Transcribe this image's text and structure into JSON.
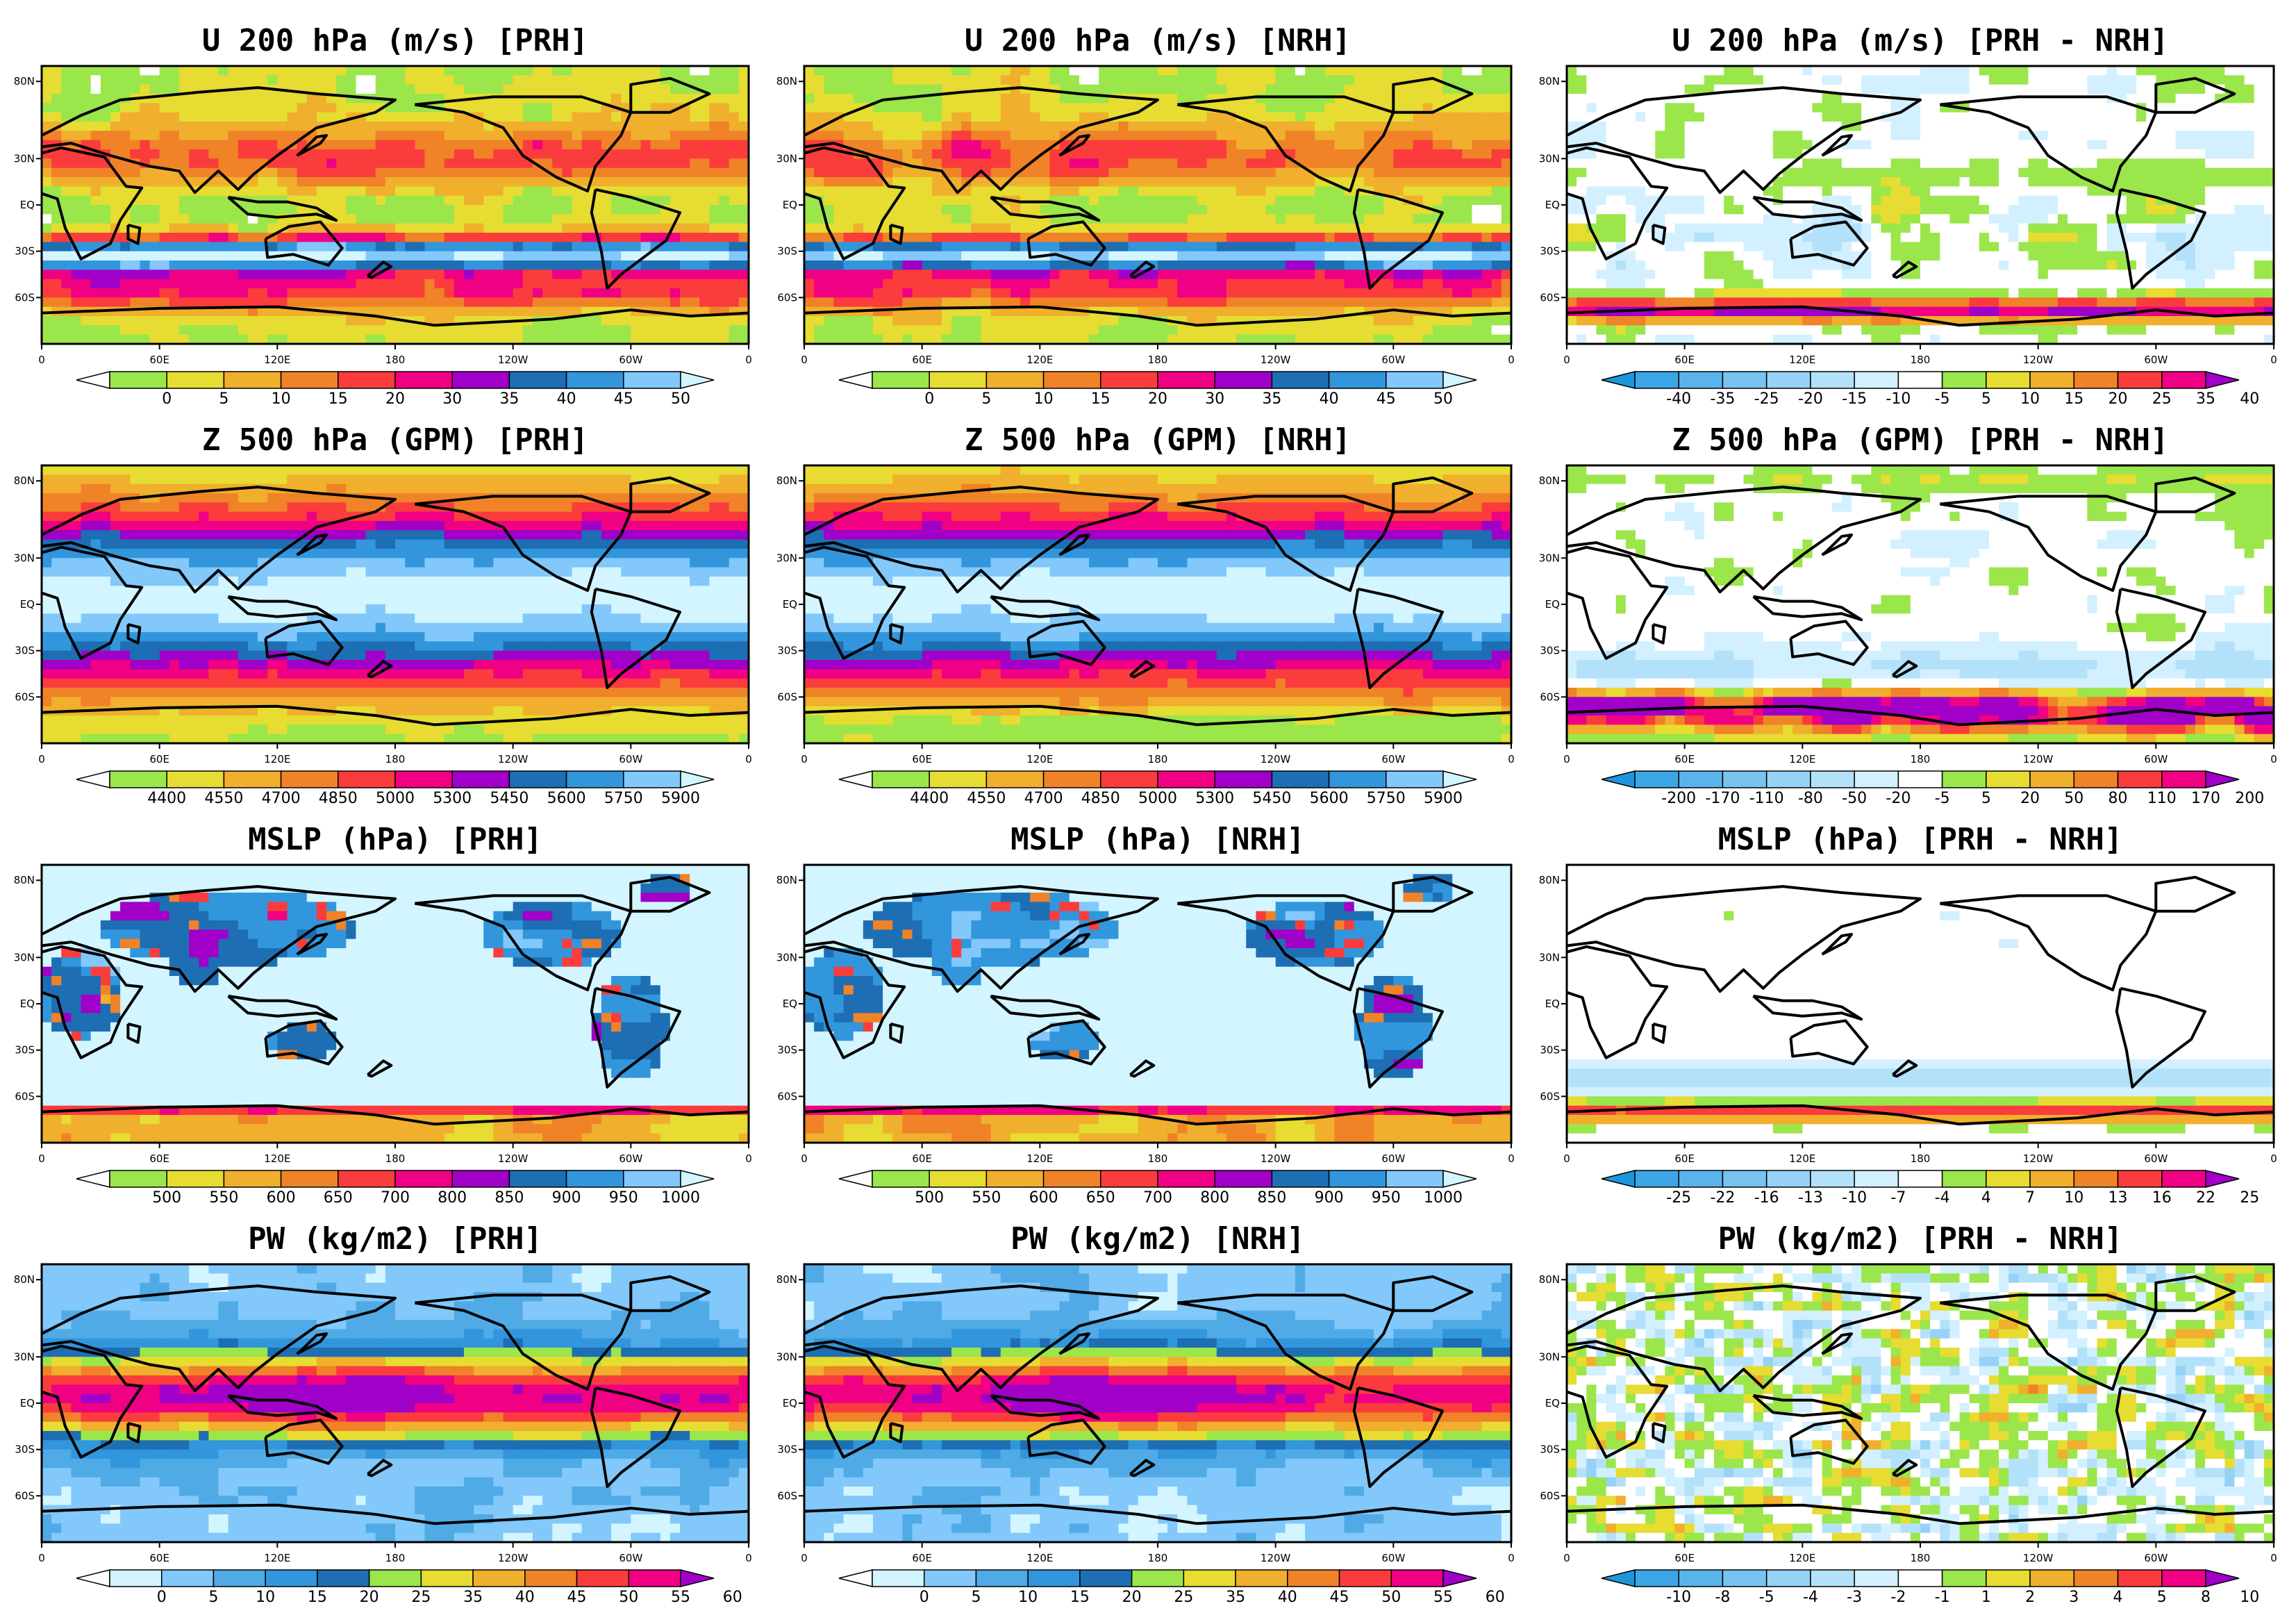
{
  "figure": {
    "rows": [
      {
        "key": "u200",
        "titles": [
          "U 200 hPa (m/s) [PRH]",
          "U 200 hPa (m/s) [NRH]",
          "U 200 hPa (m/s) [PRH - NRH]"
        ],
        "abs_levels": [
          "0",
          "5",
          "10",
          "15",
          "20",
          "30",
          "35",
          "40",
          "45",
          "50"
        ],
        "diff_levels": [
          "-40",
          "-35",
          "-25",
          "-20",
          "-15",
          "-10",
          "-5",
          "5",
          "10",
          "15",
          "20",
          "25",
          "35",
          "40"
        ]
      },
      {
        "key": "z500",
        "titles": [
          "Z 500 hPa (GPM) [PRH]",
          "Z 500 hPa (GPM) [NRH]",
          "Z 500 hPa (GPM) [PRH - NRH]"
        ],
        "abs_levels": [
          "4400",
          "4550",
          "4700",
          "4850",
          "5000",
          "5300",
          "5450",
          "5600",
          "5750",
          "5900"
        ],
        "diff_levels": [
          "-200",
          "-170",
          "-110",
          "-80",
          "-50",
          "-20",
          "-5",
          "5",
          "20",
          "50",
          "80",
          "110",
          "170",
          "200"
        ]
      },
      {
        "key": "mslp",
        "titles": [
          "MSLP (hPa) [PRH]",
          "MSLP (hPa) [NRH]",
          "MSLP (hPa) [PRH - NRH]"
        ],
        "abs_levels": [
          "500",
          "550",
          "600",
          "650",
          "700",
          "800",
          "850",
          "900",
          "950",
          "1000"
        ],
        "diff_levels": [
          "-25",
          "-22",
          "-16",
          "-13",
          "-10",
          "-7",
          "-4",
          "4",
          "7",
          "10",
          "13",
          "16",
          "22",
          "25"
        ]
      },
      {
        "key": "pw",
        "titles": [
          "PW (kg/m2) [PRH]",
          "PW (kg/m2) [NRH]",
          "PW (kg/m2) [PRH - NRH]"
        ],
        "abs_levels": [
          "0",
          "5",
          "10",
          "15",
          "20",
          "25",
          "35",
          "40",
          "45",
          "50",
          "55",
          "60"
        ],
        "diff_levels": [
          "-10",
          "-8",
          "-5",
          "-4",
          "-3",
          "-2",
          "-1",
          "1",
          "2",
          "3",
          "4",
          "5",
          "8",
          "10"
        ]
      }
    ],
    "lon_ticks": [
      "0",
      "60E",
      "120E",
      "180",
      "120W",
      "60W",
      "0"
    ],
    "lat_ticks": [
      "80N",
      "30N",
      "EQ",
      "30S",
      "60S"
    ],
    "palettes": {
      "abs": [
        "#ffffff",
        "#9be64b",
        "#e6dc32",
        "#f0af2d",
        "#f08228",
        "#fa3c3c",
        "#f00082",
        "#a000c8",
        "#1e6eb4",
        "#3296dc",
        "#82c8fa",
        "#d2f5ff"
      ],
      "abs_pw": [
        "#ffffff",
        "#d2f5ff",
        "#82c8fa",
        "#50aae6",
        "#3296dc",
        "#1e6eb4",
        "#9be64b",
        "#e6dc32",
        "#f0af2d",
        "#f08228",
        "#fa3c3c",
        "#f00082",
        "#a000c8"
      ],
      "diff": [
        "#1e96dc",
        "#3ca5e6",
        "#5ab4eb",
        "#78c3f0",
        "#96d2f5",
        "#b4e1fa",
        "#d2f0ff",
        "#ffffff",
        "#9be64b",
        "#e6dc32",
        "#f0af2d",
        "#f08228",
        "#fa3c3c",
        "#f00082",
        "#a000c8"
      ]
    }
  },
  "chart_data": [
    {
      "type": "heatmap",
      "title": "U 200 hPa (m/s) [PRH]",
      "variable": "U 200 hPa",
      "units": "m/s",
      "run": "PRH",
      "x_ticks": [
        "0",
        "60E",
        "120E",
        "180",
        "120W",
        "60W",
        "0"
      ],
      "y_ticks": [
        "80N",
        "30N",
        "EQ",
        "30S",
        "60S"
      ],
      "color_levels": [
        0,
        5,
        10,
        15,
        20,
        30,
        35,
        40,
        45,
        50
      ]
    },
    {
      "type": "heatmap",
      "title": "U 200 hPa (m/s) [NRH]",
      "variable": "U 200 hPa",
      "units": "m/s",
      "run": "NRH",
      "x_ticks": [
        "0",
        "60E",
        "120E",
        "180",
        "120W",
        "60W",
        "0"
      ],
      "y_ticks": [
        "80N",
        "30N",
        "EQ",
        "30S",
        "60S"
      ],
      "color_levels": [
        0,
        5,
        10,
        15,
        20,
        30,
        35,
        40,
        45,
        50
      ]
    },
    {
      "type": "heatmap",
      "title": "U 200 hPa (m/s) [PRH - NRH]",
      "variable": "U 200 hPa",
      "units": "m/s",
      "run": "PRH - NRH",
      "x_ticks": [
        "0",
        "60E",
        "120E",
        "180",
        "120W",
        "60W",
        "0"
      ],
      "y_ticks": [
        "80N",
        "30N",
        "EQ",
        "30S",
        "60S"
      ],
      "color_levels": [
        -40,
        -35,
        -25,
        -20,
        -15,
        -10,
        -5,
        5,
        10,
        15,
        20,
        25,
        35,
        40
      ]
    },
    {
      "type": "heatmap",
      "title": "Z 500 hPa (GPM) [PRH]",
      "variable": "Z 500 hPa",
      "units": "GPM",
      "run": "PRH",
      "x_ticks": [
        "0",
        "60E",
        "120E",
        "180",
        "120W",
        "60W",
        "0"
      ],
      "y_ticks": [
        "80N",
        "30N",
        "EQ",
        "30S",
        "60S"
      ],
      "color_levels": [
        4400,
        4550,
        4700,
        4850,
        5000,
        5300,
        5450,
        5600,
        5750,
        5900
      ]
    },
    {
      "type": "heatmap",
      "title": "Z 500 hPa (GPM) [NRH]",
      "variable": "Z 500 hPa",
      "units": "GPM",
      "run": "NRH",
      "x_ticks": [
        "0",
        "60E",
        "120E",
        "180",
        "120W",
        "60W",
        "0"
      ],
      "y_ticks": [
        "80N",
        "30N",
        "EQ",
        "30S",
        "60S"
      ],
      "color_levels": [
        4400,
        4550,
        4700,
        4850,
        5000,
        5300,
        5450,
        5600,
        5750,
        5900
      ]
    },
    {
      "type": "heatmap",
      "title": "Z 500 hPa (GPM) [PRH - NRH]",
      "variable": "Z 500 hPa",
      "units": "GPM",
      "run": "PRH - NRH",
      "x_ticks": [
        "0",
        "60E",
        "120E",
        "180",
        "120W",
        "60W",
        "0"
      ],
      "y_ticks": [
        "80N",
        "30N",
        "EQ",
        "30S",
        "60S"
      ],
      "color_levels": [
        -200,
        -170,
        -110,
        -80,
        -50,
        -20,
        -5,
        5,
        20,
        50,
        80,
        110,
        170,
        200
      ]
    },
    {
      "type": "heatmap",
      "title": "MSLP (hPa) [PRH]",
      "variable": "MSLP",
      "units": "hPa",
      "run": "PRH",
      "x_ticks": [
        "0",
        "60E",
        "120E",
        "180",
        "120W",
        "60W",
        "0"
      ],
      "y_ticks": [
        "80N",
        "30N",
        "EQ",
        "30S",
        "60S"
      ],
      "color_levels": [
        500,
        550,
        600,
        650,
        700,
        800,
        850,
        900,
        950,
        1000
      ]
    },
    {
      "type": "heatmap",
      "title": "MSLP (hPa) [NRH]",
      "variable": "MSLP",
      "units": "hPa",
      "run": "NRH",
      "x_ticks": [
        "0",
        "60E",
        "120E",
        "180",
        "120W",
        "60W",
        "0"
      ],
      "y_ticks": [
        "80N",
        "30N",
        "EQ",
        "30S",
        "60S"
      ],
      "color_levels": [
        500,
        550,
        600,
        650,
        700,
        800,
        850,
        900,
        950,
        1000
      ]
    },
    {
      "type": "heatmap",
      "title": "MSLP (hPa) [PRH - NRH]",
      "variable": "MSLP",
      "units": "hPa",
      "run": "PRH - NRH",
      "x_ticks": [
        "0",
        "60E",
        "120E",
        "180",
        "120W",
        "60W",
        "0"
      ],
      "y_ticks": [
        "80N",
        "30N",
        "EQ",
        "30S",
        "60S"
      ],
      "color_levels": [
        -25,
        -22,
        -16,
        -13,
        -10,
        -7,
        -4,
        4,
        7,
        10,
        13,
        16,
        22,
        25
      ]
    },
    {
      "type": "heatmap",
      "title": "PW (kg/m2) [PRH]",
      "variable": "PW",
      "units": "kg/m2",
      "run": "PRH",
      "x_ticks": [
        "0",
        "60E",
        "120E",
        "180",
        "120W",
        "60W",
        "0"
      ],
      "y_ticks": [
        "80N",
        "30N",
        "EQ",
        "30S",
        "60S"
      ],
      "color_levels": [
        0,
        5,
        10,
        15,
        20,
        25,
        35,
        40,
        45,
        50,
        55,
        60
      ]
    },
    {
      "type": "heatmap",
      "title": "PW (kg/m2) [NRH]",
      "variable": "PW",
      "units": "kg/m2",
      "run": "NRH",
      "x_ticks": [
        "0",
        "60E",
        "120E",
        "180",
        "120W",
        "60W",
        "0"
      ],
      "y_ticks": [
        "80N",
        "30N",
        "EQ",
        "30S",
        "60S"
      ],
      "color_levels": [
        0,
        5,
        10,
        15,
        20,
        25,
        35,
        40,
        45,
        50,
        55,
        60
      ]
    },
    {
      "type": "heatmap",
      "title": "PW (kg/m2) [PRH - NRH]",
      "variable": "PW",
      "units": "kg/m2",
      "run": "PRH - NRH",
      "x_ticks": [
        "0",
        "60E",
        "120E",
        "180",
        "120W",
        "60W",
        "0"
      ],
      "y_ticks": [
        "80N",
        "30N",
        "EQ",
        "30S",
        "60S"
      ],
      "color_levels": [
        -10,
        -8,
        -5,
        -4,
        -3,
        -2,
        -1,
        1,
        2,
        3,
        4,
        5,
        8,
        10
      ]
    }
  ]
}
